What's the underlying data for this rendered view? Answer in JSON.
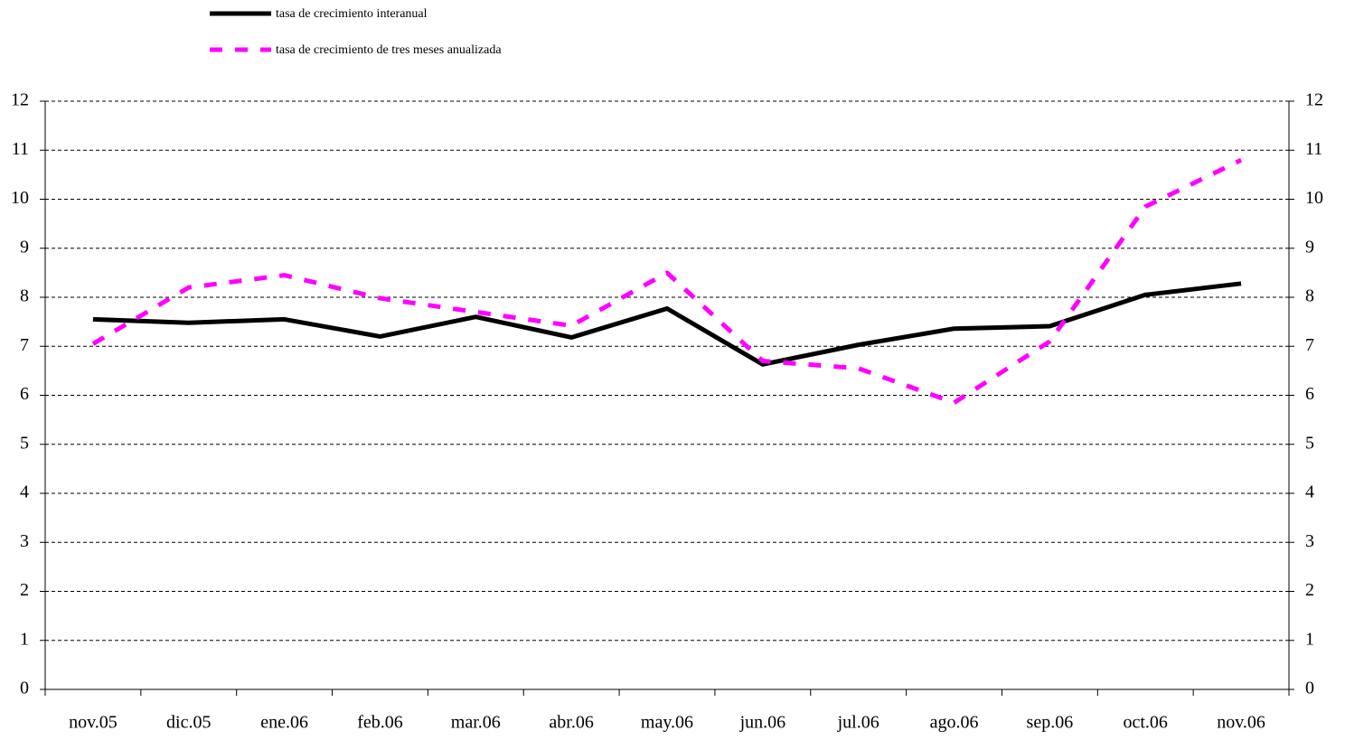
{
  "chart_data": {
    "type": "line",
    "categories": [
      "nov.05",
      "dic.05",
      "ene.06",
      "feb.06",
      "mar.06",
      "abr.06",
      "may.06",
      "jun.06",
      "jul.06",
      "ago.06",
      "sep.06",
      "oct.06",
      "nov.06"
    ],
    "series": [
      {
        "name": "tasa de crecimiento interanual",
        "color": "#000000",
        "line_style": "solid",
        "values": [
          7.55,
          7.48,
          7.55,
          7.2,
          7.6,
          7.18,
          7.77,
          6.63,
          7.03,
          7.36,
          7.41,
          8.05,
          8.28
        ]
      },
      {
        "name": "tasa de crecimiento de tres meses anualizada",
        "color": "#ff00ff",
        "line_style": "dashed",
        "values": [
          7.05,
          8.2,
          8.45,
          7.98,
          7.7,
          7.42,
          8.5,
          6.7,
          6.55,
          5.85,
          7.1,
          9.85,
          10.8
        ]
      }
    ],
    "ylim": [
      0,
      12
    ],
    "yticks": [
      0,
      1,
      2,
      3,
      4,
      5,
      6,
      7,
      8,
      9,
      10,
      11,
      12
    ],
    "y2lim": [
      0,
      12
    ],
    "y2ticks": [
      0,
      1,
      2,
      3,
      4,
      5,
      6,
      7,
      8,
      9,
      10,
      11,
      12
    ],
    "grid": true
  }
}
